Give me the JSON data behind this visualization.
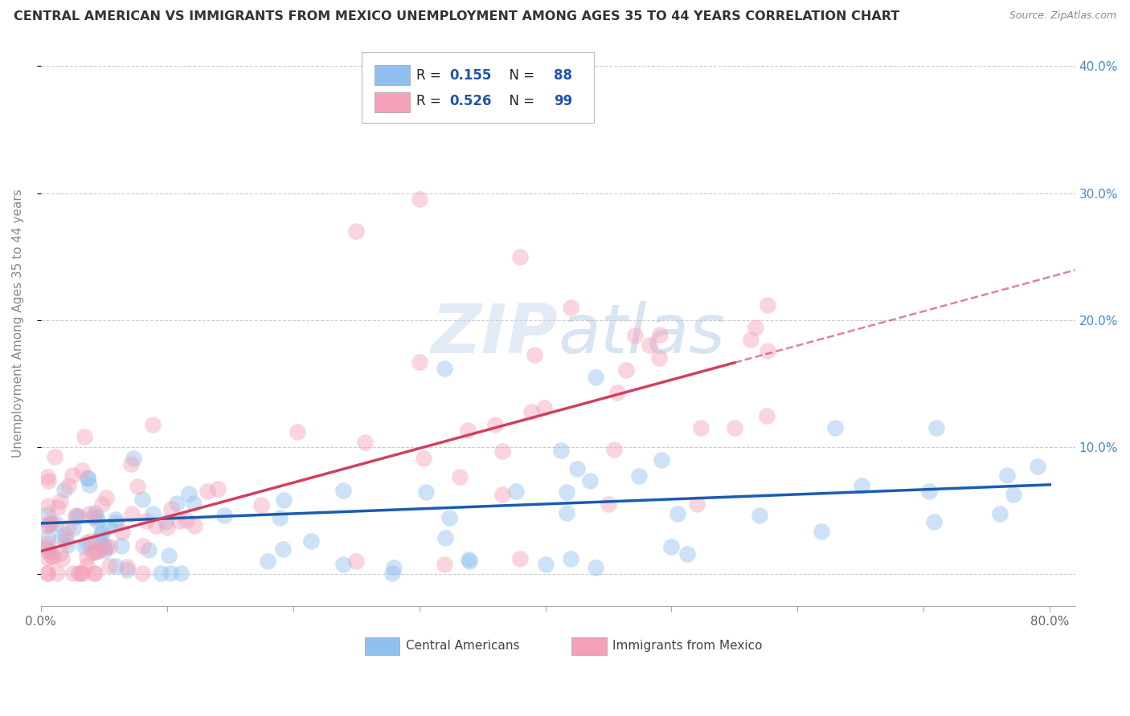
{
  "title": "CENTRAL AMERICAN VS IMMIGRANTS FROM MEXICO UNEMPLOYMENT AMONG AGES 35 TO 44 YEARS CORRELATION CHART",
  "source": "Source: ZipAtlas.com",
  "ylabel": "Unemployment Among Ages 35 to 44 years",
  "xlim": [
    0.0,
    0.82
  ],
  "ylim": [
    -0.025,
    0.42
  ],
  "yticks": [
    0.0,
    0.1,
    0.2,
    0.3,
    0.4
  ],
  "blue_R": 0.155,
  "blue_N": 88,
  "pink_R": 0.526,
  "pink_N": 99,
  "blue_color": "#90C0EE",
  "pink_color": "#F4A0B8",
  "blue_line_color": "#1A5CB0",
  "pink_line_color": "#D04060",
  "text_color": "#2255AA",
  "axis_right_color": "#4488CC",
  "watermark_color": "#C8D8EE",
  "background_color": "#ffffff",
  "grid_color": "#cccccc",
  "title_color": "#333333",
  "source_color": "#888888"
}
